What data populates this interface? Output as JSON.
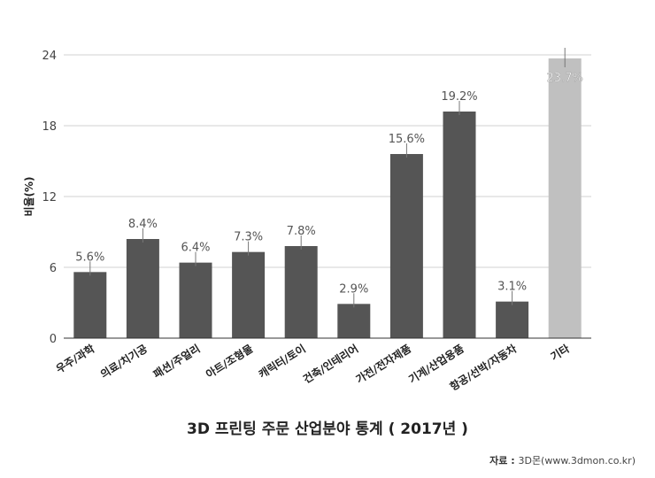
{
  "chart_data": {
    "type": "bar",
    "title": "3D 프린팅 주문 산업분야 통계 ( 2017년 )",
    "ylabel": "비율(%)",
    "xlabel": "",
    "ylim": [
      0,
      24
    ],
    "yticks": [
      0,
      6,
      12,
      18,
      24
    ],
    "grid": true,
    "categories": [
      "우주/과학",
      "의료/치기공",
      "패션/주얼리",
      "아트/조형물",
      "캐릭터/토이",
      "건축/인테리어",
      "가전/전자제품",
      "기계/산업용품",
      "항공/선박/자동차",
      "기타"
    ],
    "values": [
      5.6,
      8.4,
      6.4,
      7.3,
      7.8,
      2.9,
      15.6,
      19.2,
      3.1,
      23.7
    ],
    "data_labels": [
      "5.6%",
      "8.4%",
      "6.4%",
      "7.3%",
      "7.8%",
      "2.9%",
      "15.6%",
      "19.2%",
      "3.1%",
      "23.7%"
    ],
    "colors": {
      "bar": "#555555",
      "highlight": "#c0c0c0",
      "highlight_category": "기타",
      "grid": "#d0d0d0",
      "axis": "#333333",
      "label": "#555555"
    }
  },
  "source": {
    "prefix": "자료 : ",
    "text": "3D몬(www.3dmon.co.kr)"
  }
}
